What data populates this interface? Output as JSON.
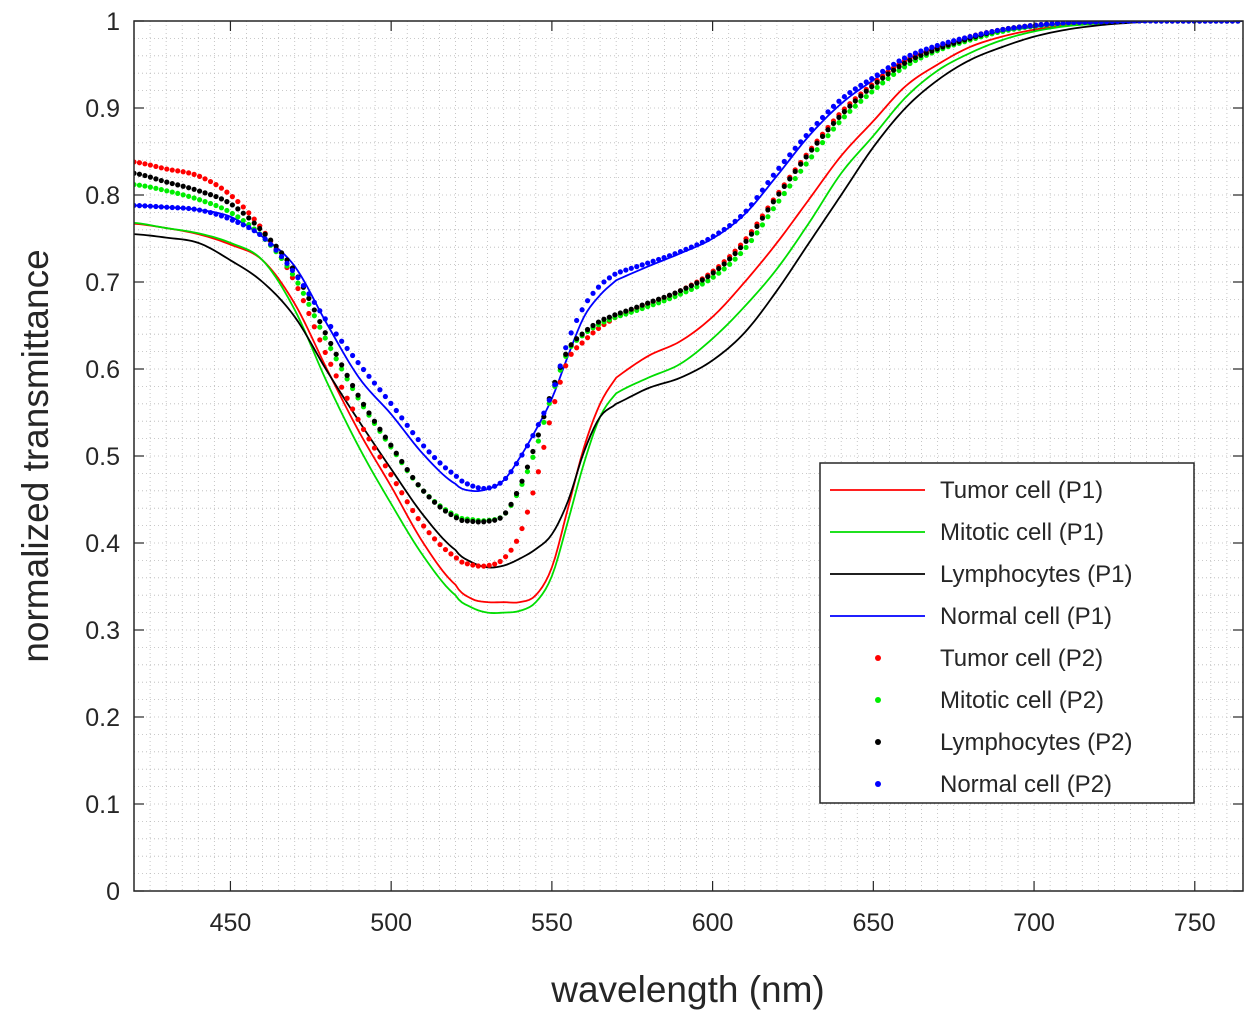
{
  "chart_data": {
    "type": "line",
    "title": "",
    "xlabel": "wavelength (nm)",
    "ylabel": "normalized transmittance",
    "xlim": [
      420,
      765
    ],
    "ylim": [
      0,
      1
    ],
    "xticks": [
      450,
      500,
      550,
      600,
      650,
      700,
      750
    ],
    "yticks": [
      0,
      0.1,
      0.2,
      0.3,
      0.4,
      0.5,
      0.6,
      0.7,
      0.8,
      0.9,
      1
    ],
    "ytick_labels": [
      "0",
      "0.1",
      "0.2",
      "0.3",
      "0.4",
      "0.5",
      "0.6",
      "0.7",
      "0.8",
      "0.9",
      "1"
    ],
    "grid": "minor dotted",
    "legend_position": "bottom-right",
    "x": [
      420,
      430,
      440,
      450,
      460,
      470,
      480,
      490,
      500,
      510,
      520,
      525,
      530,
      535,
      540,
      545,
      550,
      555,
      560,
      565,
      570,
      580,
      590,
      600,
      610,
      620,
      630,
      640,
      650,
      660,
      670,
      680,
      690,
      700,
      710,
      720,
      730,
      740,
      750,
      765
    ],
    "series": [
      {
        "name": "Tumor cell (P1)",
        "style": "line",
        "color": "#ff0000",
        "values": [
          0.767,
          0.762,
          0.755,
          0.743,
          0.725,
          0.675,
          0.6,
          0.528,
          0.465,
          0.4,
          0.352,
          0.336,
          0.332,
          0.332,
          0.332,
          0.34,
          0.372,
          0.44,
          0.51,
          0.56,
          0.59,
          0.615,
          0.632,
          0.66,
          0.7,
          0.745,
          0.795,
          0.845,
          0.885,
          0.925,
          0.95,
          0.97,
          0.982,
          0.99,
          0.995,
          0.998,
          0.999,
          1.0,
          1.0,
          1.0
        ]
      },
      {
        "name": "Mitotic cell (P1)",
        "style": "line",
        "color": "#00dd00",
        "values": [
          0.768,
          0.762,
          0.756,
          0.745,
          0.725,
          0.668,
          0.585,
          0.51,
          0.445,
          0.385,
          0.34,
          0.326,
          0.32,
          0.32,
          0.322,
          0.332,
          0.362,
          0.425,
          0.492,
          0.545,
          0.572,
          0.59,
          0.606,
          0.635,
          0.672,
          0.715,
          0.768,
          0.825,
          0.868,
          0.912,
          0.943,
          0.963,
          0.978,
          0.988,
          0.994,
          0.997,
          0.999,
          1.0,
          1.0,
          1.0
        ]
      },
      {
        "name": "Lymphocytes (P1)",
        "style": "line",
        "color": "#000000",
        "values": [
          0.755,
          0.751,
          0.745,
          0.725,
          0.7,
          0.66,
          0.598,
          0.54,
          0.485,
          0.432,
          0.392,
          0.378,
          0.372,
          0.374,
          0.382,
          0.393,
          0.41,
          0.448,
          0.505,
          0.545,
          0.56,
          0.578,
          0.59,
          0.61,
          0.642,
          0.69,
          0.745,
          0.8,
          0.855,
          0.9,
          0.932,
          0.955,
          0.97,
          0.982,
          0.99,
          0.995,
          0.998,
          1.0,
          1.0,
          1.0
        ]
      },
      {
        "name": "Normal cell (P1)",
        "style": "line",
        "color": "#0000ff",
        "values": [
          0.788,
          0.786,
          0.783,
          0.775,
          0.752,
          0.718,
          0.652,
          0.59,
          0.548,
          0.502,
          0.468,
          0.46,
          0.462,
          0.472,
          0.498,
          0.53,
          0.566,
          0.615,
          0.66,
          0.685,
          0.702,
          0.718,
          0.733,
          0.75,
          0.778,
          0.822,
          0.868,
          0.905,
          0.932,
          0.955,
          0.97,
          0.98,
          0.988,
          0.993,
          0.997,
          0.998,
          0.999,
          1.0,
          1.0,
          1.0
        ]
      },
      {
        "name": "Tumor cell (P2)",
        "style": "dotted",
        "color": "#ff0000",
        "values": [
          0.838,
          0.83,
          0.822,
          0.8,
          0.76,
          0.7,
          0.615,
          0.54,
          0.478,
          0.42,
          0.384,
          0.375,
          0.374,
          0.382,
          0.41,
          0.47,
          0.55,
          0.61,
          0.632,
          0.648,
          0.66,
          0.675,
          0.69,
          0.712,
          0.748,
          0.8,
          0.85,
          0.895,
          0.928,
          0.955,
          0.97,
          0.982,
          0.99,
          0.995,
          0.998,
          0.999,
          1.0,
          1.0,
          1.0,
          1.0
        ]
      },
      {
        "name": "Mitotic cell (P2)",
        "style": "dotted",
        "color": "#00ee00",
        "values": [
          0.812,
          0.805,
          0.795,
          0.78,
          0.752,
          0.705,
          0.632,
          0.565,
          0.51,
          0.46,
          0.432,
          0.427,
          0.426,
          0.432,
          0.462,
          0.508,
          0.57,
          0.62,
          0.64,
          0.652,
          0.66,
          0.672,
          0.686,
          0.705,
          0.738,
          0.79,
          0.84,
          0.886,
          0.92,
          0.948,
          0.966,
          0.978,
          0.988,
          0.994,
          0.997,
          0.999,
          1.0,
          1.0,
          1.0,
          1.0
        ]
      },
      {
        "name": "Lymphocytes (P2)",
        "style": "dotted",
        "color": "#000000",
        "values": [
          0.825,
          0.815,
          0.805,
          0.79,
          0.758,
          0.712,
          0.638,
          0.568,
          0.512,
          0.46,
          0.43,
          0.425,
          0.425,
          0.432,
          0.465,
          0.515,
          0.575,
          0.622,
          0.642,
          0.655,
          0.663,
          0.676,
          0.69,
          0.71,
          0.745,
          0.798,
          0.848,
          0.892,
          0.926,
          0.952,
          0.968,
          0.98,
          0.99,
          0.995,
          0.998,
          0.999,
          1.0,
          1.0,
          1.0,
          1.0
        ]
      },
      {
        "name": "Normal cell (P2)",
        "style": "dotted",
        "color": "#0000ff",
        "values": [
          0.788,
          0.786,
          0.783,
          0.772,
          0.752,
          0.71,
          0.655,
          0.606,
          0.56,
          0.512,
          0.478,
          0.466,
          0.463,
          0.472,
          0.497,
          0.53,
          0.572,
          0.632,
          0.672,
          0.696,
          0.71,
          0.722,
          0.735,
          0.752,
          0.78,
          0.828,
          0.872,
          0.91,
          0.935,
          0.958,
          0.972,
          0.982,
          0.99,
          0.995,
          0.998,
          0.999,
          1.0,
          1.0,
          1.0,
          1.0
        ]
      }
    ]
  }
}
